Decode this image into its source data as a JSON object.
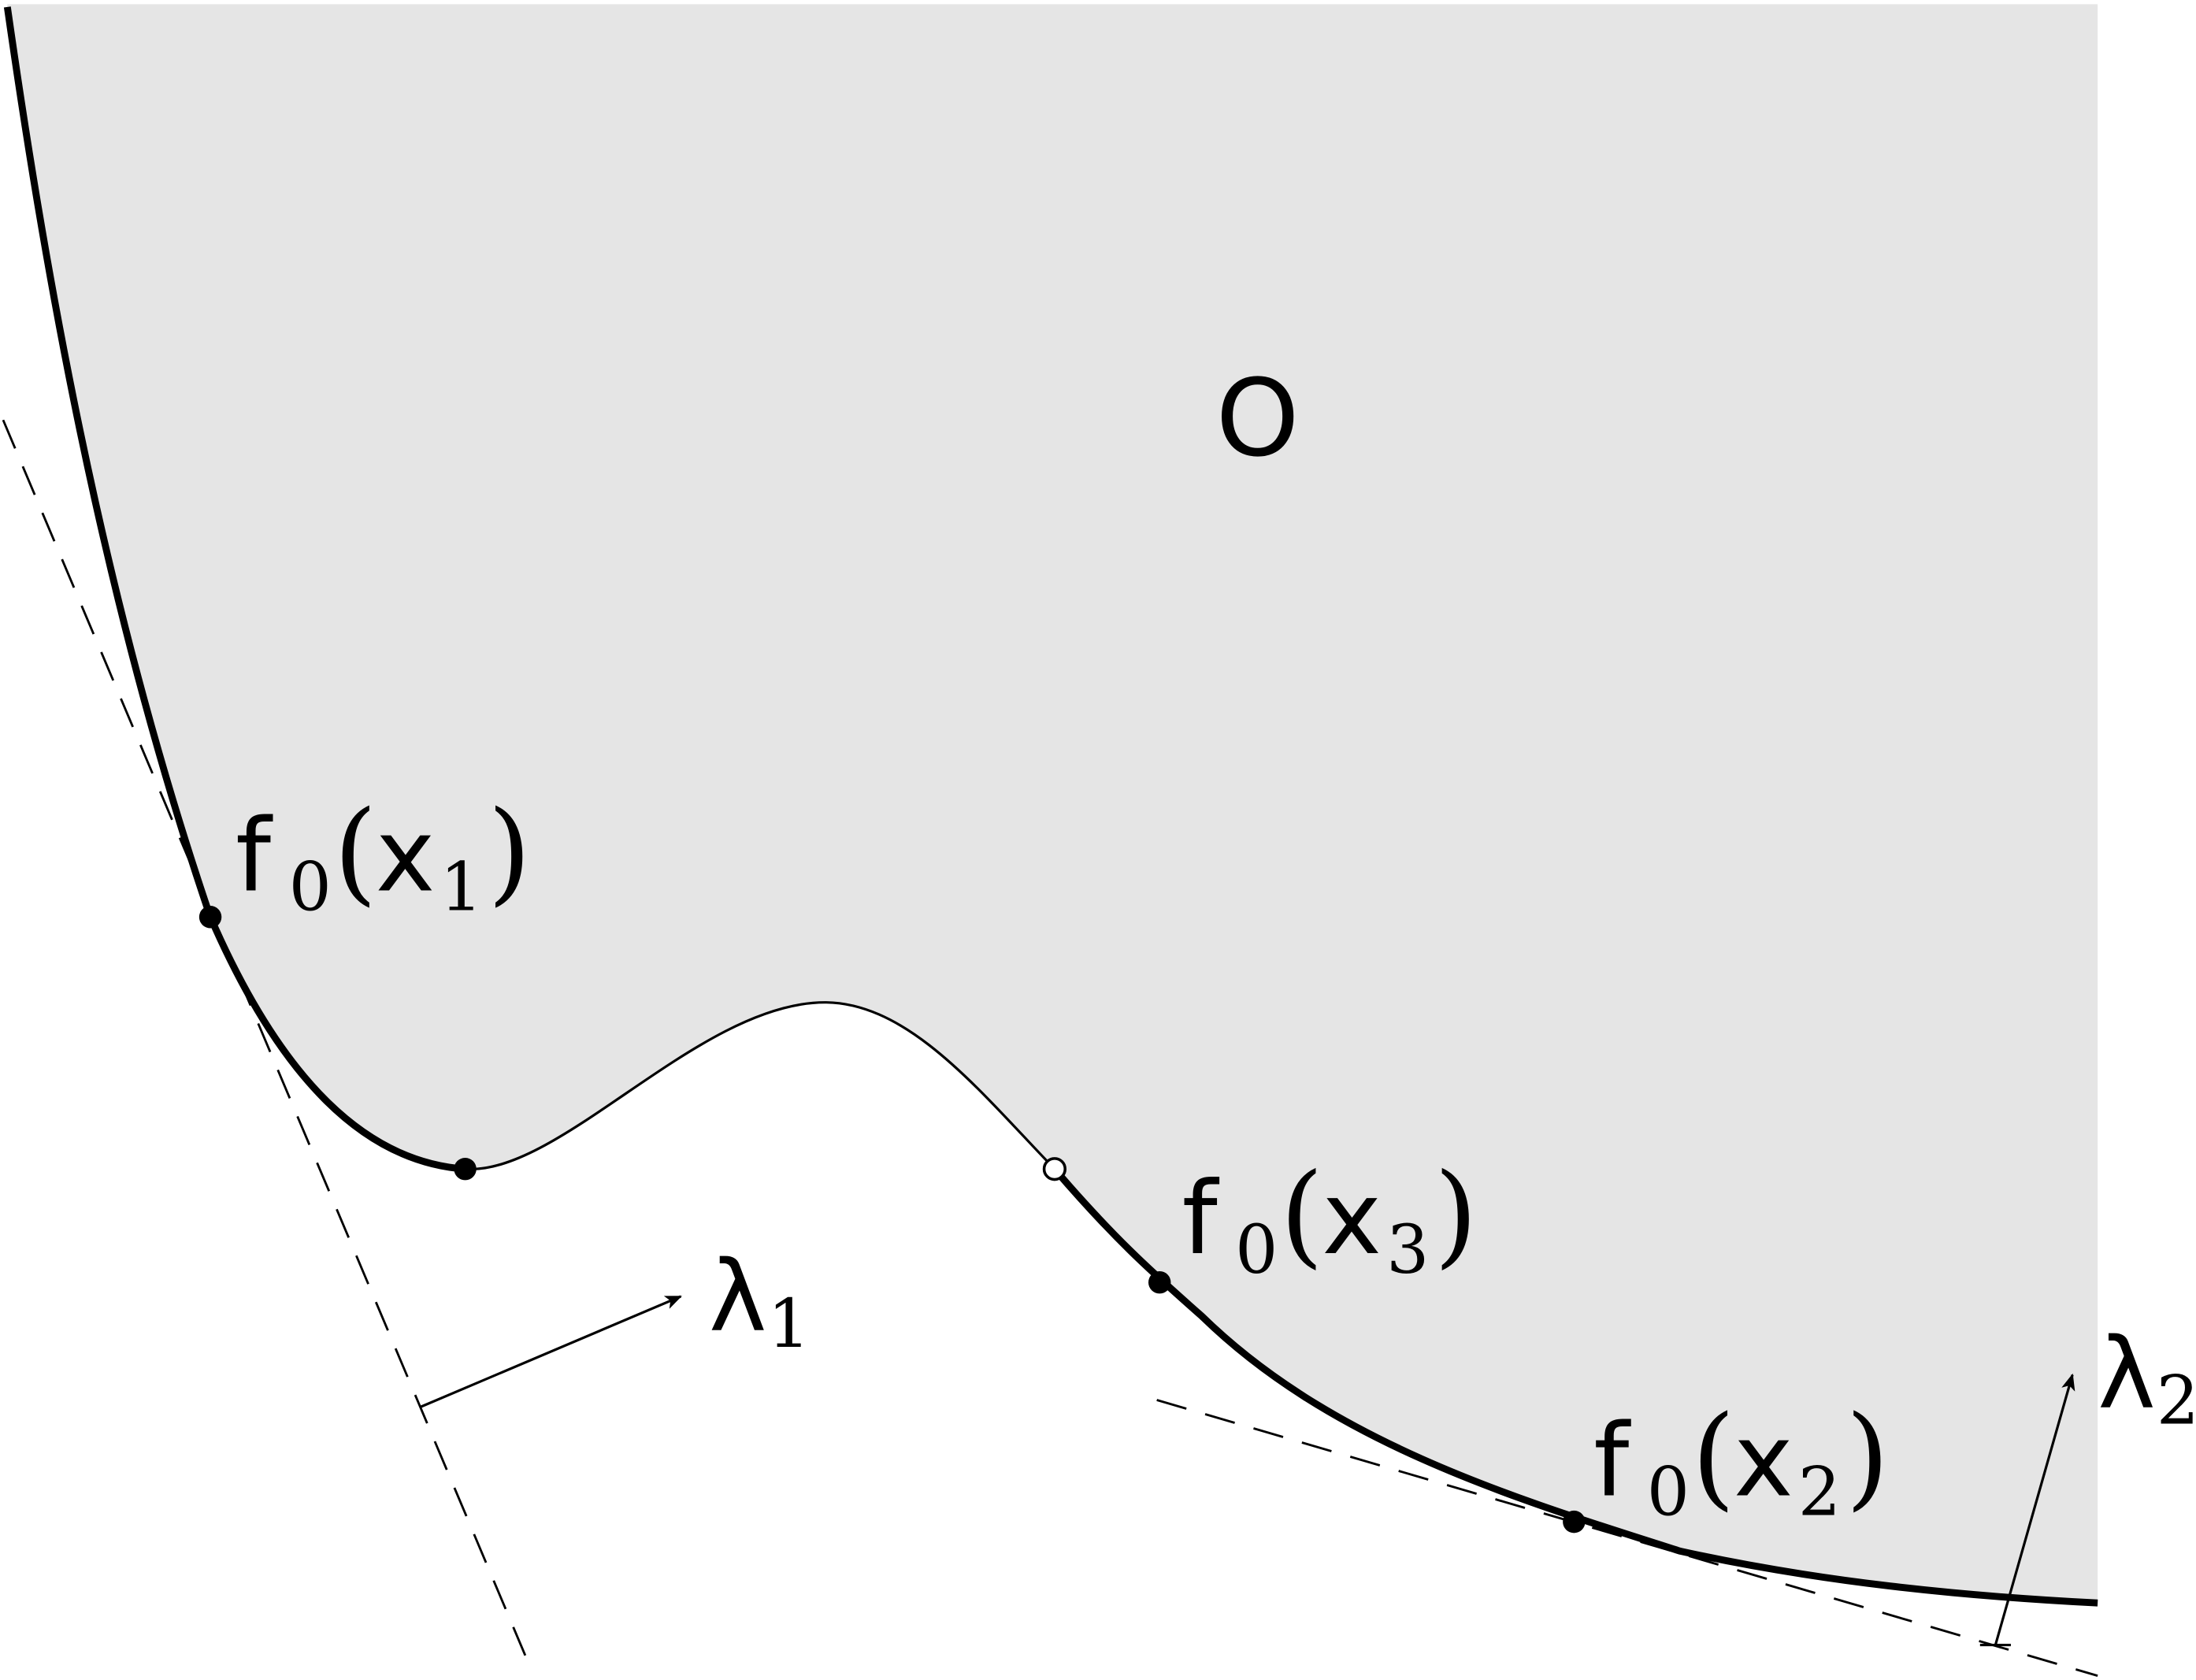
{
  "region_label": "O",
  "points": [
    {
      "func": "f",
      "func_sub": "0",
      "var": "x",
      "var_sub": "1"
    },
    {
      "func": "f",
      "func_sub": "0",
      "var": "x",
      "var_sub": "3"
    },
    {
      "func": "f",
      "func_sub": "0",
      "var": "x",
      "var_sub": "2"
    }
  ],
  "multipliers": [
    {
      "symbol": "λ",
      "sub": "1"
    },
    {
      "symbol": "λ",
      "sub": "2"
    }
  ],
  "colors": {
    "region_fill": "#e5e5e5",
    "stroke": "#000000",
    "background": "#ffffff"
  }
}
